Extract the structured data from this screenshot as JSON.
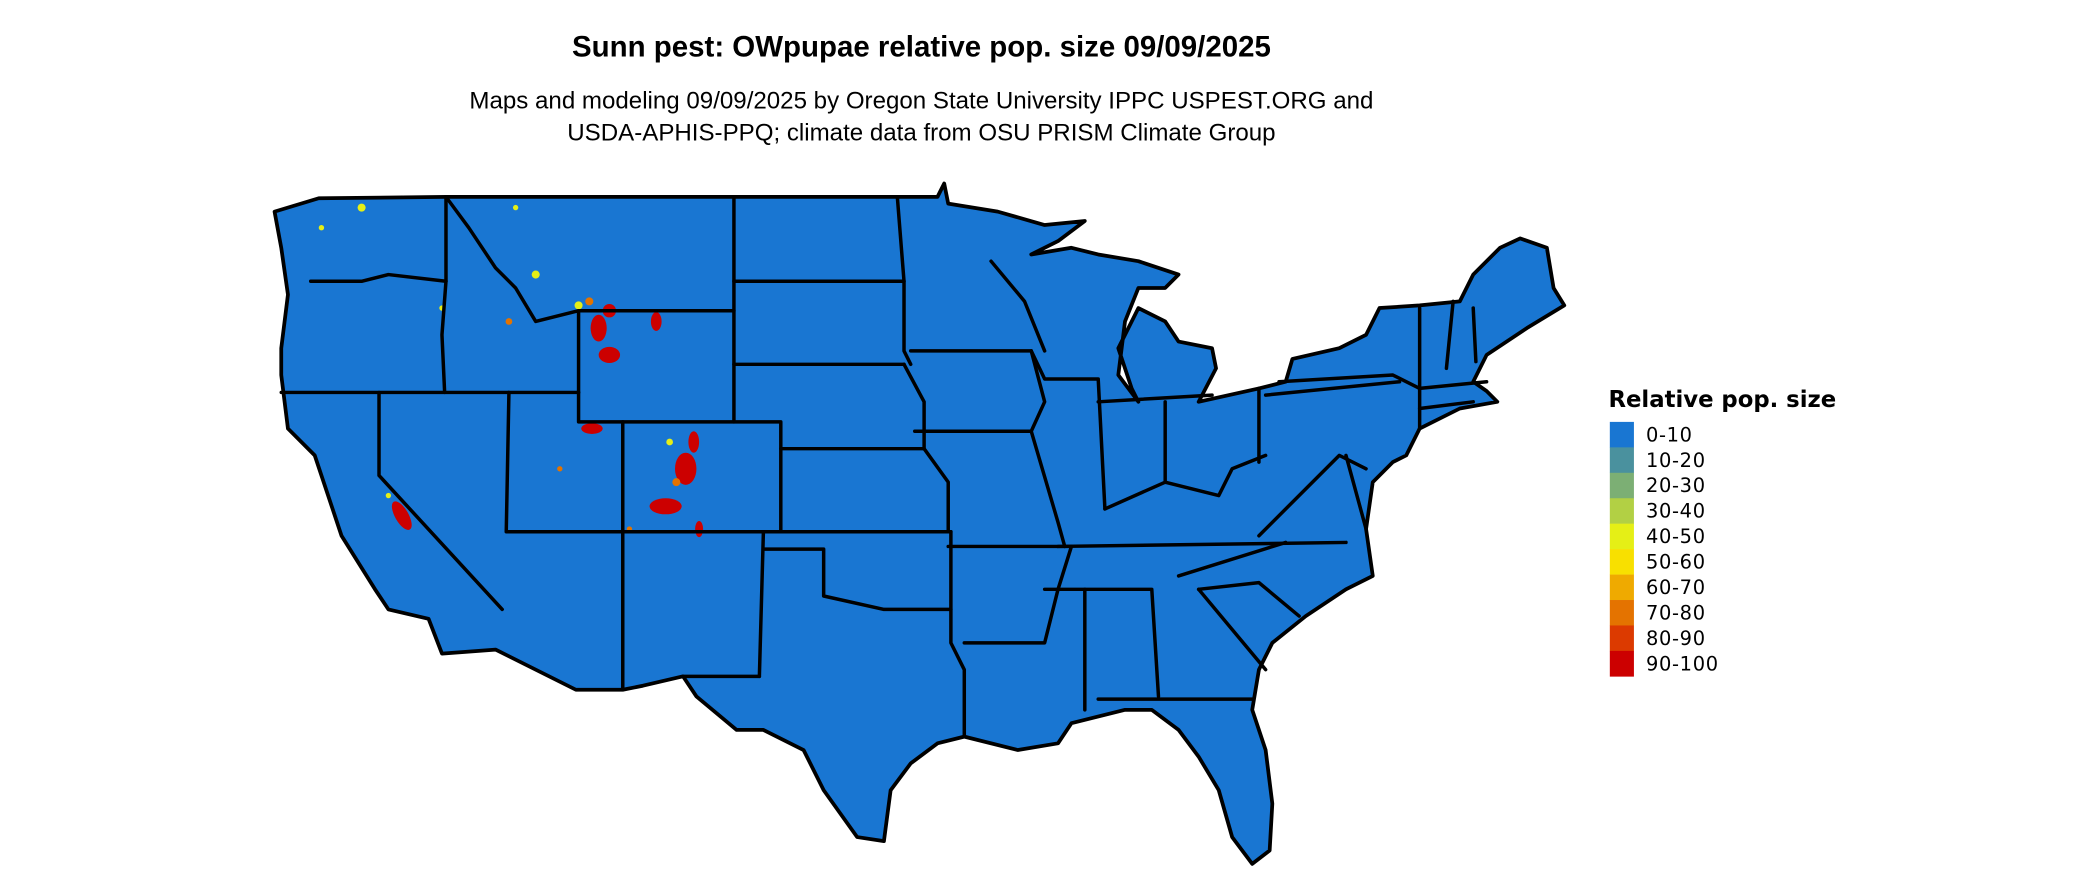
{
  "title": "Sunn pest: OWpupae relative pop. size 09/09/2025",
  "subtitle_lines": [
    "Maps and modeling 09/09/2025 by Oregon State University IPPC USPEST.ORG and",
    "USDA-APHIS-PPQ; climate data from OSU PRISM Climate Group"
  ],
  "map": {
    "region": "Contiguous United States",
    "base_fill_color": "#1976D2",
    "border_color": "#000000"
  },
  "legend": {
    "title": "Relative pop. size",
    "items": [
      {
        "label": "0-10",
        "color": "#1976D2"
      },
      {
        "label": "10-20",
        "color": "#4A919E"
      },
      {
        "label": "20-30",
        "color": "#7CAF74"
      },
      {
        "label": "30-40",
        "color": "#B2D044"
      },
      {
        "label": "40-50",
        "color": "#E5EF16"
      },
      {
        "label": "50-60",
        "color": "#F8E000"
      },
      {
        "label": "60-70",
        "color": "#EFAA00"
      },
      {
        "label": "70-80",
        "color": "#E47300"
      },
      {
        "label": "80-90",
        "color": "#DC3A00"
      },
      {
        "label": "90-100",
        "color": "#CC0000"
      }
    ]
  }
}
